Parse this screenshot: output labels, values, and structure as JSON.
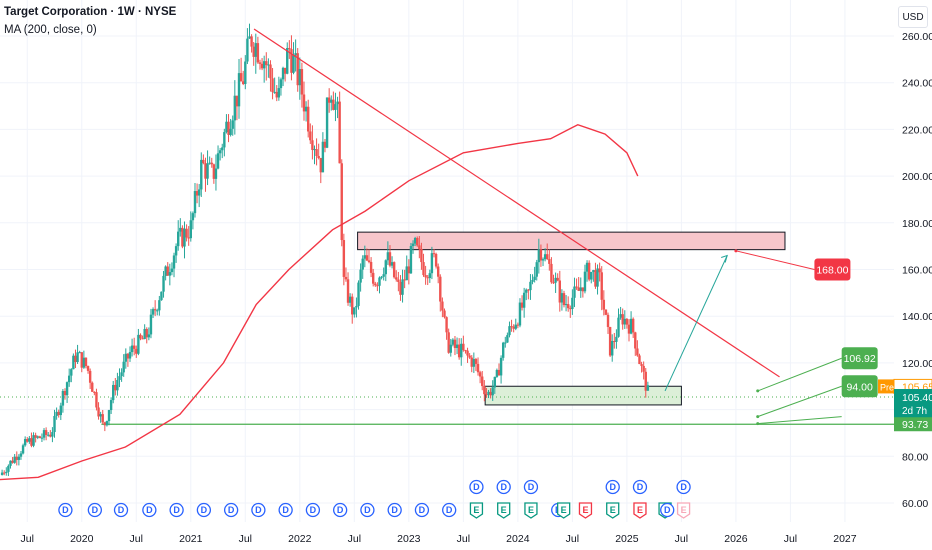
{
  "header": {
    "title": "Target Corporation · 1W · NYSE",
    "indicator": "MA (200, close, 0)"
  },
  "currency_button": "USD",
  "colors": {
    "up": "#26a69a",
    "down": "#ef5350",
    "ma": "#f23645",
    "trend": "#f23645",
    "support": "#4caf50",
    "grid": "#f0f3fa",
    "event_blue": "#2962ff",
    "event_green": "#089981",
    "event_red": "#f23645",
    "zone_red_fill": "#f7c6cb",
    "zone_green_fill": "#dcefd8",
    "pre": "#ff9800",
    "price": "#089981"
  },
  "chart_data": {
    "type": "candlestick",
    "symbol": "Target Corporation",
    "interval": "1W",
    "exchange": "NYSE",
    "ylim": [
      50,
      275
    ],
    "y_ticks": [
      "260.00",
      "240.00",
      "220.00",
      "200.00",
      "180.00",
      "160.00",
      "140.00",
      "120.00",
      "100.00",
      "80.00",
      "60.00"
    ],
    "x_labels": [
      "Jul",
      "2020",
      "Jul",
      "2021",
      "Jul",
      "2022",
      "Jul",
      "2023",
      "Jul",
      "2024",
      "Jul",
      "2025",
      "Jul",
      "2026",
      "Jul",
      "2027"
    ],
    "x_range": [
      2019.25,
      2027.45
    ],
    "price_path": [
      [
        2019.25,
        72
      ],
      [
        2019.5,
        86
      ],
      [
        2019.72,
        90
      ],
      [
        2019.85,
        110
      ],
      [
        2019.95,
        124
      ],
      [
        2020.05,
        118
      ],
      [
        2020.2,
        92
      ],
      [
        2020.3,
        110
      ],
      [
        2020.45,
        125
      ],
      [
        2020.6,
        132
      ],
      [
        2020.75,
        155
      ],
      [
        2020.88,
        172
      ],
      [
        2021.0,
        178
      ],
      [
        2021.1,
        205
      ],
      [
        2021.2,
        200
      ],
      [
        2021.35,
        225
      ],
      [
        2021.48,
        242
      ],
      [
        2021.55,
        260
      ],
      [
        2021.68,
        250
      ],
      [
        2021.8,
        232
      ],
      [
        2021.9,
        255
      ],
      [
        2022.0,
        240
      ],
      [
        2022.1,
        220
      ],
      [
        2022.2,
        205
      ],
      [
        2022.28,
        240
      ],
      [
        2022.35,
        225
      ],
      [
        2022.4,
        155
      ],
      [
        2022.5,
        140
      ],
      [
        2022.58,
        165
      ],
      [
        2022.7,
        155
      ],
      [
        2022.8,
        165
      ],
      [
        2022.92,
        150
      ],
      [
        2023.05,
        170
      ],
      [
        2023.15,
        160
      ],
      [
        2023.25,
        165
      ],
      [
        2023.35,
        128
      ],
      [
        2023.48,
        125
      ],
      [
        2023.6,
        120
      ],
      [
        2023.72,
        106
      ],
      [
        2023.8,
        112
      ],
      [
        2023.88,
        130
      ],
      [
        2024.0,
        140
      ],
      [
        2024.1,
        150
      ],
      [
        2024.2,
        170
      ],
      [
        2024.3,
        160
      ],
      [
        2024.42,
        145
      ],
      [
        2024.55,
        150
      ],
      [
        2024.65,
        160
      ],
      [
        2024.75,
        155
      ],
      [
        2024.85,
        125
      ],
      [
        2024.95,
        140
      ],
      [
        2025.05,
        135
      ],
      [
        2025.12,
        120
      ],
      [
        2025.2,
        106
      ]
    ],
    "ma_200": [
      [
        2019.25,
        70
      ],
      [
        2019.6,
        71
      ],
      [
        2020.0,
        78
      ],
      [
        2020.4,
        84
      ],
      [
        2020.9,
        98
      ],
      [
        2021.3,
        120
      ],
      [
        2021.6,
        145
      ],
      [
        2021.9,
        160
      ],
      [
        2022.3,
        177
      ],
      [
        2022.6,
        185
      ],
      [
        2023.0,
        198
      ],
      [
        2023.5,
        210
      ],
      [
        2024.0,
        214
      ],
      [
        2024.3,
        216
      ],
      [
        2024.55,
        222
      ],
      [
        2024.8,
        218
      ],
      [
        2025.0,
        210
      ],
      [
        2025.1,
        200
      ]
    ],
    "trendline": {
      "from": [
        2021.58,
        263
      ],
      "to": [
        2026.4,
        114
      ]
    },
    "resistance_zone": {
      "x": [
        2022.53,
        2026.45
      ],
      "y": [
        168.5,
        176
      ]
    },
    "support_zone": {
      "x": [
        2023.7,
        2025.5
      ],
      "y": [
        102,
        110
      ]
    },
    "support_line": 93.73,
    "dotted_line": 105.4,
    "projection": {
      "from": [
        2025.35,
        108
      ],
      "to": [
        2025.92,
        166
      ]
    },
    "target_168": {
      "from": [
        2026.0,
        168
      ],
      "to": [
        2026.72,
        160
      ]
    },
    "target_106": {
      "from": [
        2026.2,
        108
      ],
      "to": [
        2026.97,
        122
      ]
    },
    "target_94": {
      "from": [
        2026.2,
        97
      ],
      "to": [
        2026.97,
        110
      ]
    },
    "target_9373": {
      "from": [
        2026.2,
        94
      ],
      "to": [
        2026.97,
        97
      ]
    },
    "labels": [
      {
        "text": "168.00",
        "value": 168.0,
        "color": "#f23645"
      },
      {
        "text": "106.92",
        "value": 106.92,
        "color": "#4caf50"
      },
      {
        "text": "94.00",
        "value": 94.0,
        "color": "#4caf50"
      }
    ],
    "axis_tags": [
      {
        "prefix": "Pre",
        "text": "105.65",
        "value": 105.65,
        "kind": "pre"
      },
      {
        "text": "105.40",
        "value": 105.4,
        "sub": "2d 7h",
        "kind": "price"
      },
      {
        "text": "93.73",
        "value": 93.73,
        "kind": "support"
      }
    ],
    "events": [
      {
        "x": 2019.85,
        "row": "bottom",
        "glyph": "D",
        "kind": "dividend"
      },
      {
        "x": 2020.12,
        "row": "bottom",
        "glyph": "D",
        "kind": "dividend"
      },
      {
        "x": 2020.36,
        "row": "bottom",
        "glyph": "D",
        "kind": "dividend"
      },
      {
        "x": 2020.62,
        "row": "bottom",
        "glyph": "D",
        "kind": "dividend"
      },
      {
        "x": 2020.87,
        "row": "bottom",
        "glyph": "D",
        "kind": "dividend"
      },
      {
        "x": 2021.12,
        "row": "bottom",
        "glyph": "D",
        "kind": "dividend"
      },
      {
        "x": 2021.37,
        "row": "bottom",
        "glyph": "D",
        "kind": "dividend"
      },
      {
        "x": 2021.62,
        "row": "bottom",
        "glyph": "D",
        "kind": "dividend"
      },
      {
        "x": 2021.87,
        "row": "bottom",
        "glyph": "D",
        "kind": "dividend"
      },
      {
        "x": 2022.12,
        "row": "bottom",
        "glyph": "D",
        "kind": "dividend"
      },
      {
        "x": 2022.37,
        "row": "bottom",
        "glyph": "D",
        "kind": "dividend"
      },
      {
        "x": 2022.62,
        "row": "bottom",
        "glyph": "D",
        "kind": "dividend"
      },
      {
        "x": 2022.87,
        "row": "bottom",
        "glyph": "D",
        "kind": "dividend"
      },
      {
        "x": 2023.12,
        "row": "bottom",
        "glyph": "D",
        "kind": "dividend"
      },
      {
        "x": 2023.37,
        "row": "bottom",
        "glyph": "D",
        "kind": "dividend"
      },
      {
        "x": 2023.62,
        "row": "top",
        "glyph": "D",
        "kind": "dividend"
      },
      {
        "x": 2023.62,
        "row": "bottom",
        "glyph": "E",
        "kind": "earnings"
      },
      {
        "x": 2023.87,
        "row": "top",
        "glyph": "D",
        "kind": "dividend"
      },
      {
        "x": 2023.87,
        "row": "bottom",
        "glyph": "E",
        "kind": "earnings"
      },
      {
        "x": 2024.12,
        "row": "top",
        "glyph": "D",
        "kind": "dividend"
      },
      {
        "x": 2024.12,
        "row": "bottom",
        "glyph": "E",
        "kind": "earnings"
      },
      {
        "x": 2024.37,
        "row": "bottom",
        "glyph": "D",
        "kind": "dividend"
      },
      {
        "x": 2024.42,
        "row": "bottom",
        "glyph": "E",
        "kind": "earnings"
      },
      {
        "x": 2024.62,
        "row": "bottom",
        "glyph": "E",
        "kind": "earnings_miss"
      },
      {
        "x": 2024.87,
        "row": "top",
        "glyph": "D",
        "kind": "dividend"
      },
      {
        "x": 2024.87,
        "row": "bottom",
        "glyph": "E",
        "kind": "earnings"
      },
      {
        "x": 2025.12,
        "row": "top",
        "glyph": "D",
        "kind": "dividend"
      },
      {
        "x": 2025.12,
        "row": "bottom",
        "glyph": "E",
        "kind": "earnings_miss"
      },
      {
        "x": 2025.35,
        "row": "bottom",
        "glyph": "E",
        "kind": "earnings"
      },
      {
        "x": 2025.37,
        "row": "bottom",
        "glyph": "D",
        "kind": "dividend"
      },
      {
        "x": 2025.52,
        "row": "top",
        "glyph": "D",
        "kind": "dividend"
      },
      {
        "x": 2025.52,
        "row": "bottom",
        "glyph": "E",
        "kind": "earnings_future"
      }
    ]
  }
}
